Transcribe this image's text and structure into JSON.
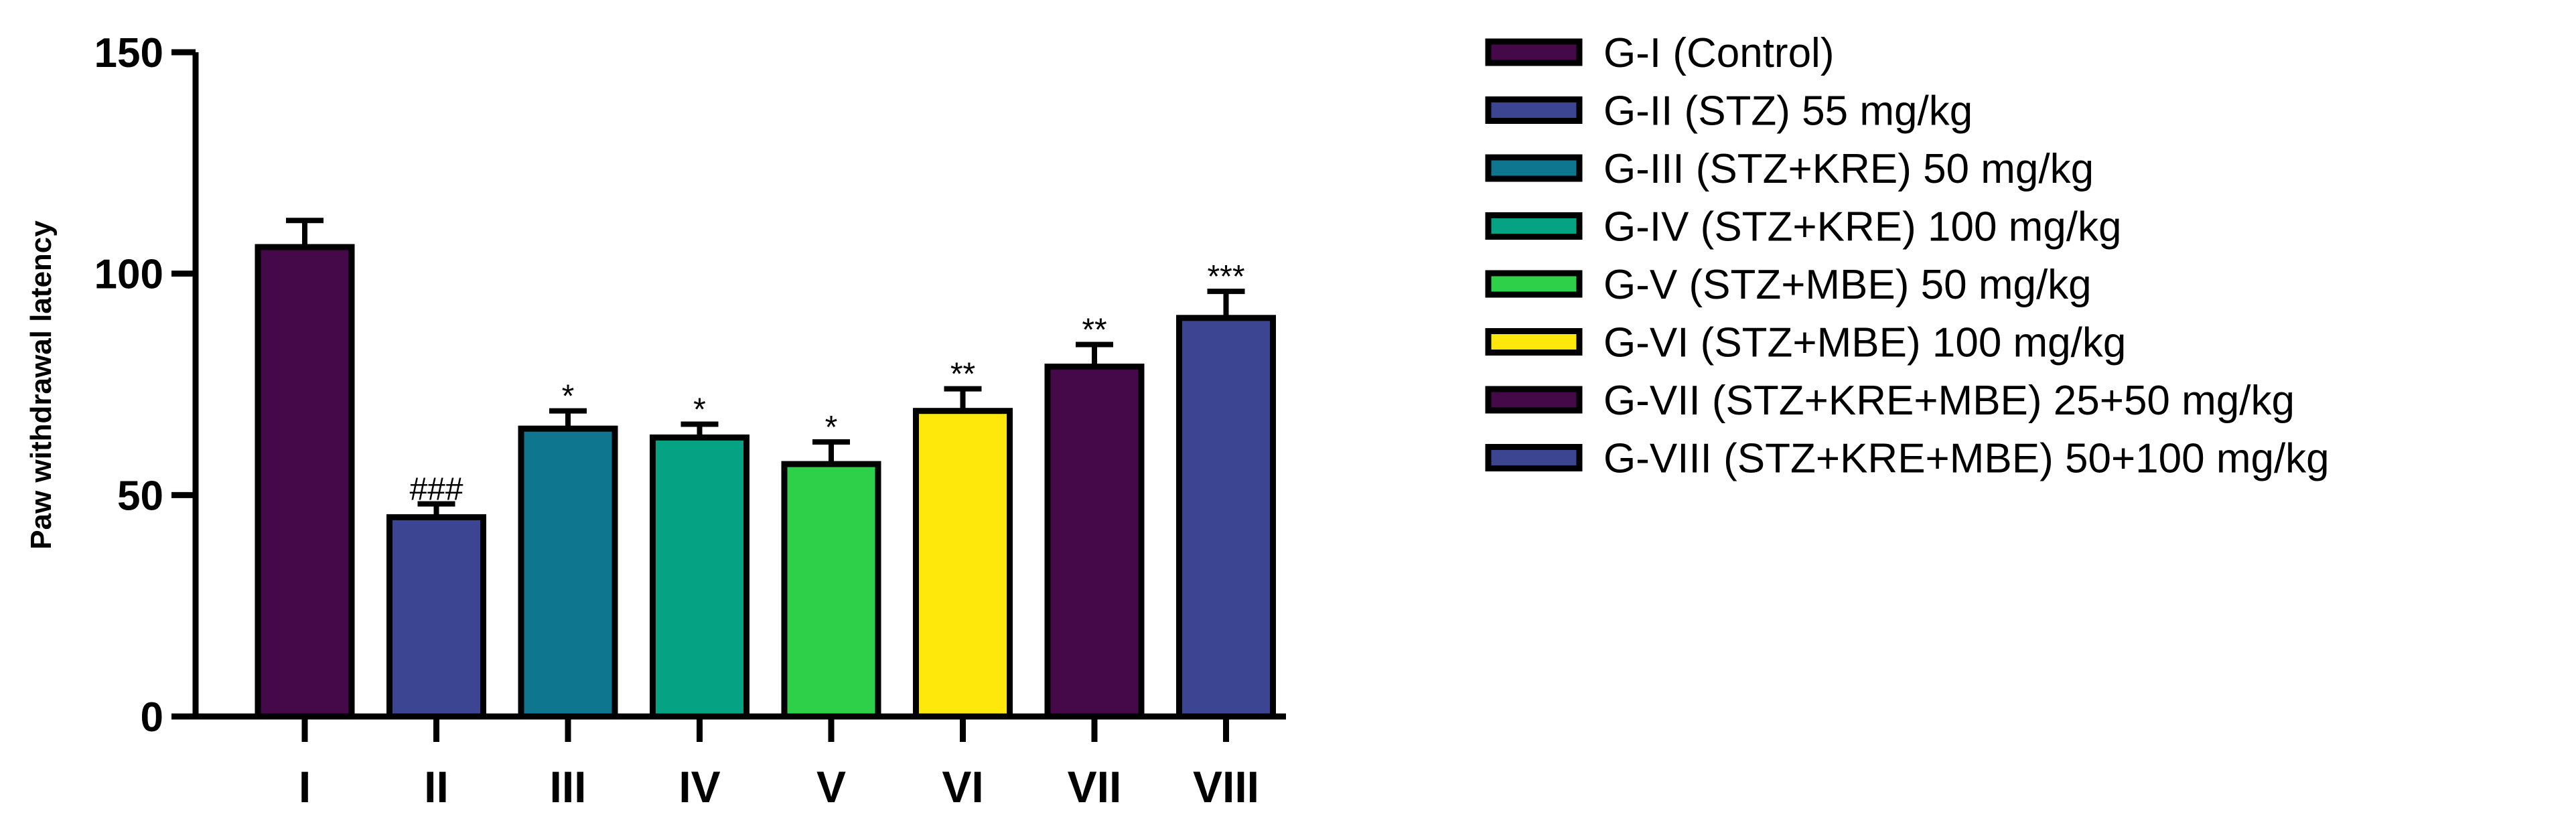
{
  "chart_data": {
    "type": "bar",
    "ylabel": "Paw withdrawal latency",
    "ylim": [
      0,
      150
    ],
    "yticks": [
      0,
      50,
      100,
      150
    ],
    "categories": [
      "I",
      "II",
      "III",
      "IV",
      "V",
      "VI",
      "VII",
      "VIII"
    ],
    "values": [
      106,
      45,
      65,
      63,
      57,
      69,
      79,
      90
    ],
    "errors": [
      6,
      3,
      4,
      3,
      5,
      5,
      5,
      6
    ],
    "significance": [
      "",
      "###",
      "*",
      "*",
      "*",
      "**",
      "**",
      "***"
    ],
    "colors": [
      "#45094a",
      "#3c4591",
      "#0f7690",
      "#05a283",
      "#2ecf49",
      "#fee70a",
      "#45094a",
      "#3c4591"
    ],
    "legend_position": "right",
    "legend": [
      "G-I (Control)",
      "G-II (STZ) 55 mg/kg",
      "G-III (STZ+KRE) 50 mg/kg",
      "G-IV (STZ+KRE) 100 mg/kg",
      "G-V (STZ+MBE) 50 mg/kg",
      "G-VI (STZ+MBE) 100 mg/kg",
      "G-VII (STZ+KRE+MBE) 25+50 mg/kg",
      "G-VIII (STZ+KRE+MBE) 50+100 mg/kg"
    ]
  }
}
